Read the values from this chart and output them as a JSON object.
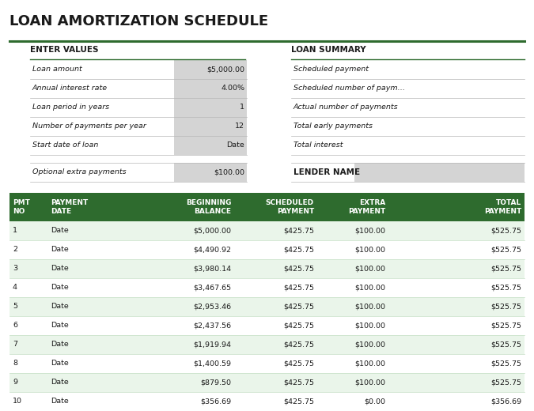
{
  "title": "LOAN AMORTIZATION SCHEDULE",
  "title_color": "#1a1a1a",
  "dark_green": "#2e6b2e",
  "light_green_bg": "#eaf5ea",
  "white": "#ffffff",
  "gray_cell": "#d4d4d4",
  "enter_values_label": "ENTER VALUES",
  "loan_summary_label": "LOAN SUMMARY",
  "lender_name_label": "LENDER NAME",
  "enter_fields": [
    [
      "Loan amount",
      "$5,000.00"
    ],
    [
      "Annual interest rate",
      "4.00%"
    ],
    [
      "Loan period in years",
      "1"
    ],
    [
      "Number of payments per year",
      "12"
    ],
    [
      "Start date of loan",
      "Date"
    ]
  ],
  "extra_payment_label": "Optional extra payments",
  "extra_payment_value": "$100.00",
  "loan_summary_fields": [
    "Scheduled payment",
    "Scheduled number of paym…",
    "Actual number of payments",
    "Total early payments",
    "Total interest"
  ],
  "table_headers": [
    "PMT\nNO",
    "PAYMENT\nDATE",
    "BEGINNING\nBALANCE",
    "SCHEDULED\nPAYMENT",
    "EXTRA\nPAYMENT",
    "TOTAL\nPAYMENT"
  ],
  "table_data": [
    [
      "1",
      "Date",
      "$5,000.00",
      "$425.75",
      "$100.00",
      "$525.75"
    ],
    [
      "2",
      "Date",
      "$4,490.92",
      "$425.75",
      "$100.00",
      "$525.75"
    ],
    [
      "3",
      "Date",
      "$3,980.14",
      "$425.75",
      "$100.00",
      "$525.75"
    ],
    [
      "4",
      "Date",
      "$3,467.65",
      "$425.75",
      "$100.00",
      "$525.75"
    ],
    [
      "5",
      "Date",
      "$2,953.46",
      "$425.75",
      "$100.00",
      "$525.75"
    ],
    [
      "6",
      "Date",
      "$2,437.56",
      "$425.75",
      "$100.00",
      "$525.75"
    ],
    [
      "7",
      "Date",
      "$1,919.94",
      "$425.75",
      "$100.00",
      "$525.75"
    ],
    [
      "8",
      "Date",
      "$1,400.59",
      "$425.75",
      "$100.00",
      "$525.75"
    ],
    [
      "9",
      "Date",
      "$879.50",
      "$425.75",
      "$100.00",
      "$525.75"
    ],
    [
      "10",
      "Date",
      "$356.69",
      "$425.75",
      "$0.00",
      "$356.69"
    ]
  ],
  "col_alignments": [
    "left",
    "left",
    "right",
    "right",
    "right",
    "right"
  ],
  "title_fontsize": 13,
  "section_fontsize": 7.5,
  "row_fontsize": 6.8,
  "header_fontsize": 6.5
}
